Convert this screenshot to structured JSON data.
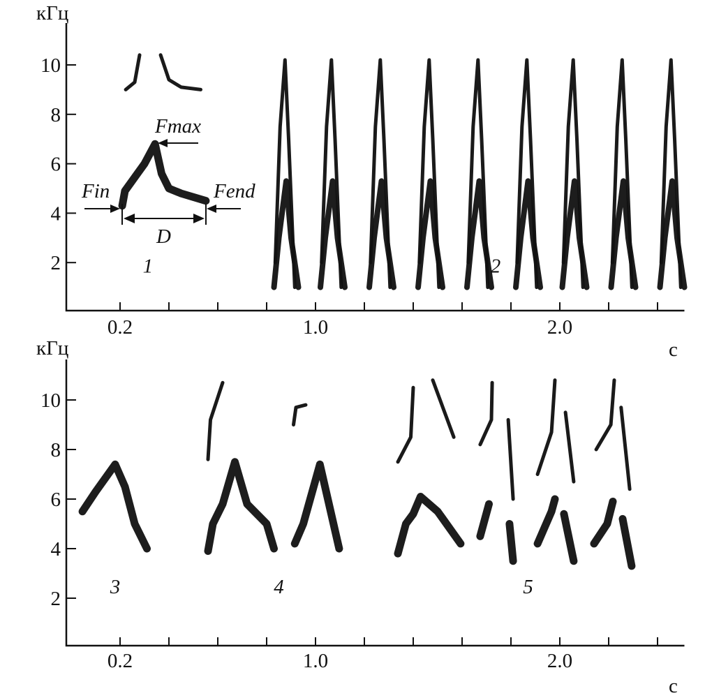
{
  "chart_data": [
    {
      "type": "spectrogram",
      "panel": "top",
      "ylabel": "кГц",
      "xlabel": "с",
      "yticks": [
        2,
        4,
        6,
        8,
        10
      ],
      "ytick_labels": [
        "2",
        "4",
        "6",
        "8",
        "10"
      ],
      "xticks": [
        0.2,
        0.4,
        0.6,
        0.8,
        1.0,
        1.2,
        1.4,
        1.6,
        1.8,
        2.0,
        2.2,
        2.4
      ],
      "xtick_labels": [
        {
          "t": 0.2,
          "label": "0.2"
        },
        {
          "t": 1.0,
          "label": "1.0"
        },
        {
          "t": 2.0,
          "label": "2.0"
        }
      ],
      "xlim": [
        -0.02,
        2.51
      ],
      "ylim": [
        0,
        11.7
      ],
      "syllables": [
        {
          "id": "1",
          "label": "1",
          "label_pos": [
            0.314,
            1.6
          ],
          "fundamental": [
            [
              [
                0.209,
                4.3
              ],
              [
                0.22,
                4.9
              ],
              [
                0.3,
                6.0
              ],
              [
                0.343,
                6.8
              ],
              [
                0.37,
                5.6
              ],
              [
                0.4,
                5.0
              ],
              [
                0.45,
                4.8
              ],
              [
                0.551,
                4.5
              ]
            ]
          ],
          "harmonics": [
            [
              [
                0.223,
                9.0
              ],
              [
                0.26,
                9.3
              ],
              [
                0.28,
                10.4
              ]
            ],
            [
              [
                0.366,
                10.4
              ],
              [
                0.4,
                9.4
              ],
              [
                0.45,
                9.1
              ],
              [
                0.53,
                9.0
              ]
            ]
          ]
        }
      ],
      "repeated_series": {
        "id": "2",
        "label": "2",
        "label_pos": [
          1.737,
          1.6
        ],
        "unit_starts": [
          0.83,
          1.02,
          1.22,
          1.42,
          1.62,
          1.82,
          2.01,
          2.21,
          2.41
        ],
        "unit_lower": [
          [
            0,
            1.0
          ],
          [
            0.02,
            3.0
          ],
          [
            0.05,
            5.3
          ],
          [
            0.07,
            3.0
          ],
          [
            0.1,
            1.0
          ]
        ],
        "unit_upper": [
          [
            0.005,
            2.0
          ],
          [
            0.025,
            7.5
          ],
          [
            0.045,
            10.2
          ],
          [
            0.06,
            7.0
          ],
          [
            0.085,
            1.0
          ]
        ]
      },
      "annotations": {
        "fmax": "Fmax",
        "fin": "Fin",
        "fend": "Fend",
        "duration": "D"
      }
    },
    {
      "type": "spectrogram",
      "panel": "bottom",
      "ylabel": "кГц",
      "xlabel": "с",
      "yticks": [
        2,
        4,
        6,
        8,
        10
      ],
      "ytick_labels": [
        "2",
        "4",
        "6",
        "8",
        "10"
      ],
      "xticks": [
        0.2,
        0.4,
        0.6,
        0.8,
        1.0,
        1.2,
        1.4,
        1.6,
        1.8,
        2.0,
        2.2,
        2.4
      ],
      "xtick_labels": [
        {
          "t": 0.2,
          "label": "0.2"
        },
        {
          "t": 1.0,
          "label": "1.0"
        },
        {
          "t": 2.0,
          "label": "2.0"
        }
      ],
      "xlim": [
        -0.02,
        2.51
      ],
      "ylim": [
        0,
        11.7
      ],
      "syllables": [
        {
          "id": "3",
          "label": "3",
          "label_pos": [
            0.18,
            2.2
          ],
          "fundamental": [
            [
              [
                0.046,
                5.5
              ],
              [
                0.1,
                6.3
              ],
              [
                0.18,
                7.4
              ],
              [
                0.22,
                6.5
              ],
              [
                0.26,
                5.0
              ],
              [
                0.31,
                4.0
              ]
            ]
          ],
          "harmonics": []
        },
        {
          "id": "4",
          "label": "4",
          "label_pos": [
            0.85,
            2.2
          ],
          "fundamental": [
            [
              [
                0.56,
                3.9
              ],
              [
                0.58,
                5.0
              ],
              [
                0.62,
                5.8
              ],
              [
                0.67,
                7.5
              ],
              [
                0.72,
                5.8
              ],
              [
                0.8,
                5.0
              ],
              [
                0.83,
                4.0
              ]
            ],
            [
              [
                0.915,
                4.2
              ],
              [
                0.95,
                5.0
              ],
              [
                1.018,
                7.4
              ],
              [
                1.097,
                4.0
              ]
            ]
          ],
          "harmonics": [
            [
              [
                0.56,
                7.6
              ],
              [
                0.57,
                9.2
              ],
              [
                0.62,
                10.7
              ]
            ],
            [
              [
                0.91,
                9.0
              ],
              [
                0.92,
                9.7
              ],
              [
                0.96,
                9.8
              ]
            ]
          ]
        },
        {
          "id": "5",
          "label": "5",
          "label_pos": [
            1.87,
            2.2
          ],
          "fundamental": [
            [
              [
                1.337,
                3.8
              ],
              [
                1.37,
                5.0
              ],
              [
                1.4,
                5.4
              ],
              [
                1.43,
                6.1
              ],
              [
                1.5,
                5.5
              ],
              [
                1.594,
                4.2
              ]
            ],
            [
              [
                1.674,
                4.5
              ],
              [
                1.71,
                5.8
              ]
            ],
            [
              [
                1.794,
                5.0
              ],
              [
                1.809,
                3.5
              ]
            ],
            [
              [
                1.909,
                4.2
              ],
              [
                1.966,
                5.5
              ],
              [
                1.98,
                6.0
              ]
            ],
            [
              [
                2.017,
                5.4
              ],
              [
                2.057,
                3.5
              ]
            ],
            [
              [
                2.14,
                4.2
              ],
              [
                2.194,
                5.0
              ],
              [
                2.217,
                5.9
              ]
            ],
            [
              [
                2.257,
                5.2
              ],
              [
                2.294,
                3.3
              ]
            ]
          ],
          "harmonics": [
            [
              [
                1.337,
                7.5
              ],
              [
                1.39,
                8.5
              ],
              [
                1.4,
                10.5
              ]
            ],
            [
              [
                1.48,
                10.8
              ],
              [
                1.566,
                8.5
              ]
            ],
            [
              [
                1.674,
                8.2
              ],
              [
                1.72,
                9.2
              ],
              [
                1.723,
                10.7
              ]
            ],
            [
              [
                1.789,
                9.2
              ],
              [
                1.809,
                6.0
              ]
            ],
            [
              [
                1.909,
                7.0
              ],
              [
                1.966,
                8.7
              ],
              [
                1.98,
                10.8
              ]
            ],
            [
              [
                2.023,
                9.5
              ],
              [
                2.057,
                6.7
              ]
            ],
            [
              [
                2.149,
                8.0
              ],
              [
                2.209,
                9.0
              ],
              [
                2.223,
                10.8
              ]
            ],
            [
              [
                2.251,
                9.7
              ],
              [
                2.286,
                6.4
              ]
            ]
          ]
        }
      ]
    }
  ]
}
